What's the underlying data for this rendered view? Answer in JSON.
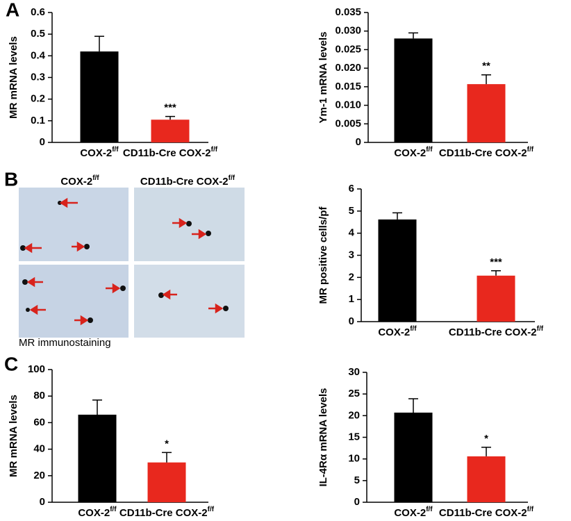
{
  "panel_labels": [
    "A",
    "B",
    "C"
  ],
  "micrograph": {
    "columns": [
      {
        "text": "COX-2",
        "sup": "f/f"
      },
      {
        "text": "CD11b-Cre COX-2",
        "sup": "f/f"
      }
    ],
    "caption": "MR immunostaining"
  },
  "chart_data": [
    {
      "type": "bar",
      "y_label": "MR mRNA levels",
      "categories": [
        {
          "text": "COX-2",
          "sup": "f/f"
        },
        {
          "text": "CD11b-Cre COX-2",
          "sup": "f/f"
        }
      ],
      "values": [
        0.42,
        0.105
      ],
      "errors": [
        0.07,
        0.015
      ],
      "colors": [
        "#000000",
        "#e8281e"
      ],
      "annotations": [
        null,
        "***"
      ],
      "ylim": [
        0,
        0.6
      ],
      "yticks": [
        0,
        0.1,
        0.2,
        0.3,
        0.4,
        0.5,
        0.6
      ]
    },
    {
      "type": "bar",
      "y_label": "Ym-1 mRNA levels",
      "categories": [
        {
          "text": "COX-2",
          "sup": "f/f"
        },
        {
          "text": "CD11b-Cre COX-2",
          "sup": "f/f"
        }
      ],
      "values": [
        0.028,
        0.0157
      ],
      "errors": [
        0.0015,
        0.0025
      ],
      "colors": [
        "#000000",
        "#e8281e"
      ],
      "annotations": [
        null,
        "**"
      ],
      "ylim": [
        0,
        0.035
      ],
      "yticks": [
        0,
        0.005,
        {
          "value": 0.01,
          "label": "0.010"
        },
        0.015,
        {
          "value": 0.02,
          "label": "0.020"
        },
        0.025,
        {
          "value": 0.03,
          "label": "0.030"
        },
        0.035
      ]
    },
    {
      "type": "bar",
      "y_label": "MR positive cells/pf",
      "categories": [
        {
          "text": "COX-2",
          "sup": "f/f"
        },
        {
          "text": "CD11b-Cre COX-2",
          "sup": "f/f"
        }
      ],
      "values": [
        4.62,
        2.08
      ],
      "errors": [
        0.3,
        0.22
      ],
      "colors": [
        "#000000",
        "#e8281e"
      ],
      "annotations": [
        null,
        "***"
      ],
      "ylim": [
        0,
        6
      ],
      "yticks": [
        0,
        1,
        2,
        3,
        4,
        5,
        6
      ]
    },
    {
      "type": "bar",
      "y_label": "MR mRNA levels",
      "categories": [
        {
          "text": "COX-2",
          "sup": "f/f"
        },
        {
          "text": "CD11b-Cre COX-2",
          "sup": "f/f"
        }
      ],
      "values": [
        66,
        30
      ],
      "errors": [
        11,
        7.5
      ],
      "colors": [
        "#000000",
        "#e8281e"
      ],
      "annotations": [
        null,
        "*"
      ],
      "ylim": [
        0,
        100
      ],
      "yticks": [
        0,
        20,
        40,
        60,
        80,
        100
      ]
    },
    {
      "type": "bar",
      "y_label": "IL-4Rα mRNA levels",
      "categories": [
        {
          "text": "COX-2",
          "sup": "f/f"
        },
        {
          "text": "CD11b-Cre COX-2",
          "sup": "f/f"
        }
      ],
      "values": [
        20.7,
        10.6
      ],
      "errors": [
        3.2,
        2.1
      ],
      "colors": [
        "#000000",
        "#e8281e"
      ],
      "annotations": [
        null,
        "*"
      ],
      "ylim": [
        0,
        30
      ],
      "yticks": [
        0,
        5,
        10,
        15,
        20,
        25,
        30
      ]
    }
  ]
}
